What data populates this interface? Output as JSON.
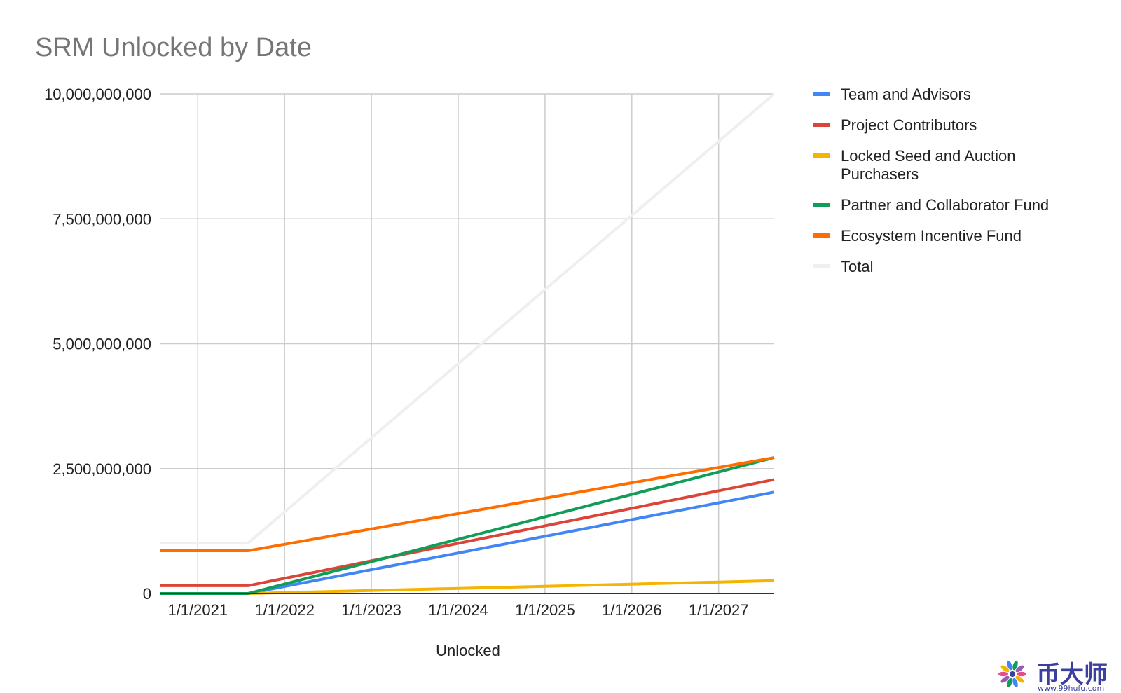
{
  "chart_data": {
    "type": "line",
    "title": "SRM Unlocked by Date",
    "xlabel": "Unlocked",
    "ylabel": "",
    "x_ticks": [
      "1/1/2021",
      "1/1/2022",
      "1/1/2023",
      "1/1/2024",
      "1/1/2025",
      "1/1/2026",
      "1/1/2027"
    ],
    "x_range": [
      2020.57,
      2027.64
    ],
    "ylim": [
      0,
      10000000000
    ],
    "y_ticks": [
      0,
      2500000000,
      5000000000,
      7500000000,
      10000000000
    ],
    "y_tick_labels": [
      "0",
      "2,500,000,000",
      "5,000,000,000",
      "7,500,000,000",
      "10,000,000,000"
    ],
    "grid": true,
    "legend_position": "right",
    "series": [
      {
        "name": "Team and Advisors",
        "color": "#4285f4",
        "points": [
          [
            2020.57,
            0
          ],
          [
            2021.58,
            0
          ],
          [
            2027.64,
            2030000000
          ]
        ]
      },
      {
        "name": "Project Contributors",
        "color": "#db4437",
        "points": [
          [
            2020.57,
            155000000
          ],
          [
            2021.58,
            155000000
          ],
          [
            2027.64,
            2280000000
          ]
        ]
      },
      {
        "name": "Locked Seed and Auction Purchasers",
        "color": "#f4b400",
        "points": [
          [
            2020.57,
            0
          ],
          [
            2021.58,
            0
          ],
          [
            2027.64,
            255000000
          ]
        ]
      },
      {
        "name": "Partner and Collaborator Fund",
        "color": "#0f9d58",
        "points": [
          [
            2020.57,
            0
          ],
          [
            2021.58,
            0
          ],
          [
            2027.64,
            2720000000
          ]
        ]
      },
      {
        "name": "Ecosystem Incentive Fund",
        "color": "#ff6d00",
        "points": [
          [
            2020.57,
            855000000
          ],
          [
            2021.58,
            855000000
          ],
          [
            2027.64,
            2720000000
          ]
        ]
      },
      {
        "name": "Total",
        "color": "#efefef",
        "points": [
          [
            2020.57,
            1010000000
          ],
          [
            2021.58,
            1010000000
          ],
          [
            2027.64,
            10000000000
          ]
        ]
      }
    ]
  },
  "watermark": {
    "brand_text": "币大师",
    "url_text": "www.99hufu.com",
    "colors": [
      "#e84b8a",
      "#f4b400",
      "#4285f4",
      "#0f9d58",
      "#9b59b6"
    ]
  }
}
